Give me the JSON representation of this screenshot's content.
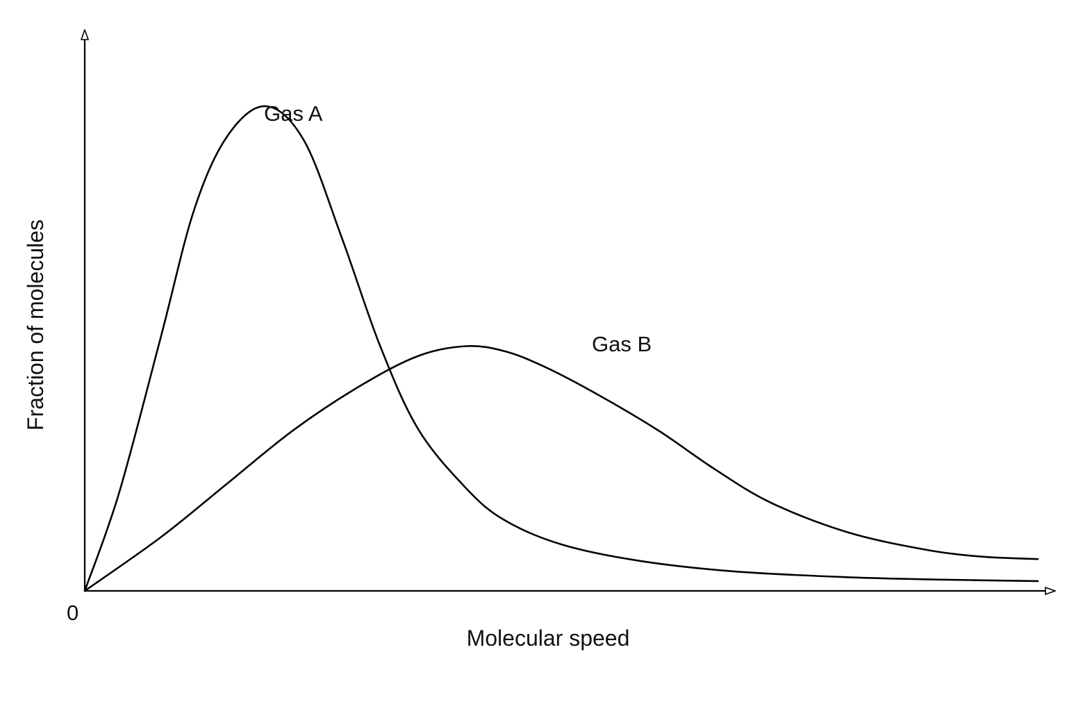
{
  "chart_data": {
    "type": "line",
    "title": "",
    "xlabel": "Molecular speed",
    "ylabel": "Fraction of molecules",
    "origin_label": "0",
    "xlim": [
      0,
      1
    ],
    "ylim": [
      0,
      1
    ],
    "grid": false,
    "legend": "none",
    "series": [
      {
        "name": "Gas A",
        "x": [
          0,
          0.036,
          0.08,
          0.115,
          0.15,
          0.19,
          0.23,
          0.27,
          0.31,
          0.35,
          0.4,
          0.44,
          0.5,
          0.58,
          0.68,
          0.8,
          0.9,
          1.0
        ],
        "y": [
          0,
          0.2,
          0.52,
          0.78,
          0.93,
          0.99,
          0.92,
          0.72,
          0.5,
          0.33,
          0.21,
          0.145,
          0.095,
          0.062,
          0.04,
          0.028,
          0.023,
          0.02
        ]
      },
      {
        "name": "Gas B",
        "x": [
          0,
          0.08,
          0.15,
          0.22,
          0.29,
          0.35,
          0.4,
          0.44,
          0.48,
          0.53,
          0.6,
          0.66,
          0.72,
          0.8,
          0.88,
          0.94,
          1.0
        ],
        "y": [
          0,
          0.11,
          0.22,
          0.33,
          0.42,
          0.48,
          0.5,
          0.49,
          0.46,
          0.41,
          0.33,
          0.25,
          0.18,
          0.12,
          0.085,
          0.07,
          0.065
        ]
      }
    ],
    "annotations": [
      {
        "text": "Gas A",
        "series": 0,
        "near_x": 0.19,
        "near_y": 0.99
      },
      {
        "text": "Gas B",
        "series": 1,
        "near_x": 0.53,
        "near_y": 0.5
      }
    ]
  }
}
